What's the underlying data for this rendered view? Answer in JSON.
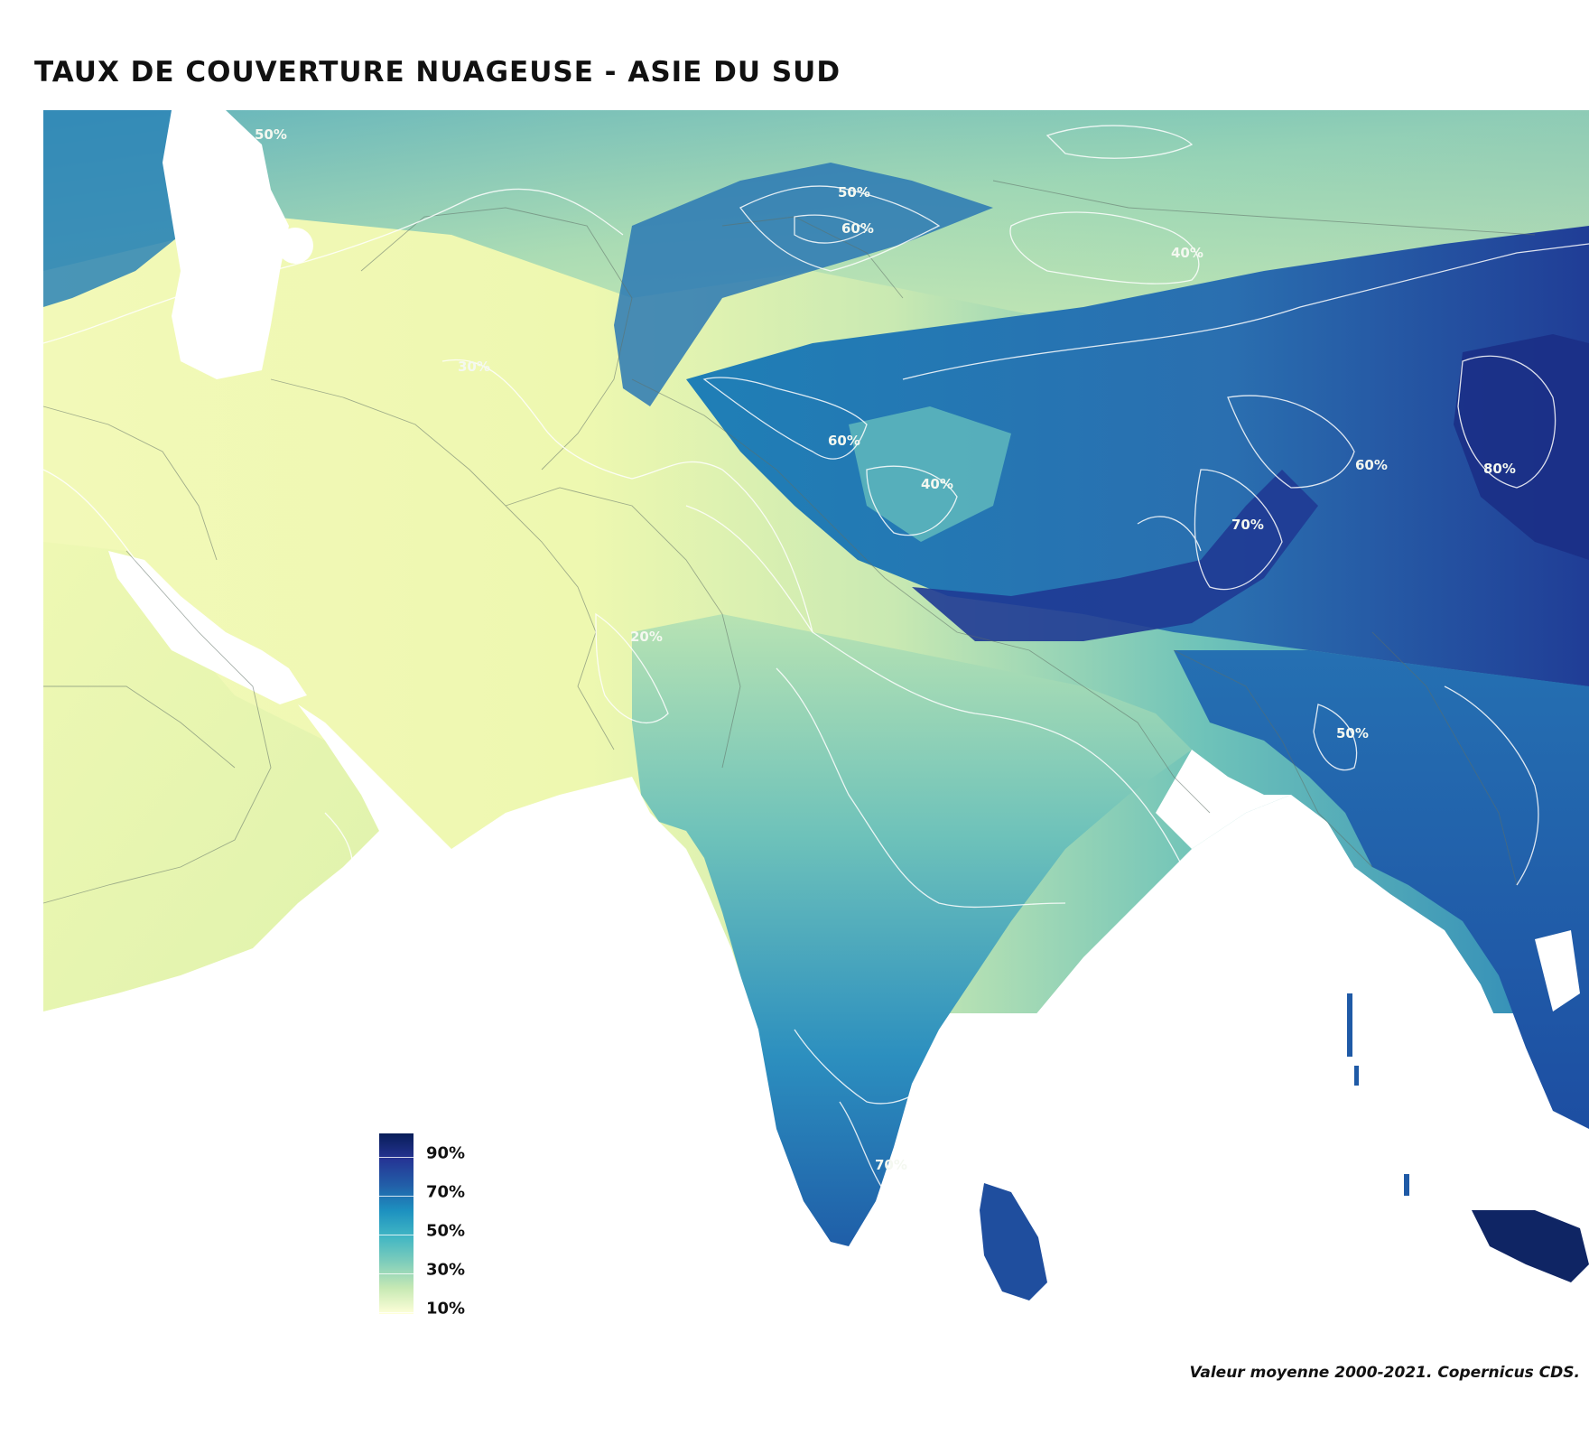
{
  "title": "Taux de couverture nuageuse - Asie du Sud",
  "credit": "Valeur moyenne 2000-2021. Copernicus CDS.",
  "legend": {
    "labels": [
      "90%",
      "70%",
      "50%",
      "30%",
      "10%"
    ],
    "min": 10,
    "max": 95,
    "colors": [
      "#ffffd9",
      "#c7e9b4",
      "#7fcdbb",
      "#41b6c4",
      "#1d91c0",
      "#225ea8",
      "#253494",
      "#081d58"
    ]
  },
  "contours": {
    "labels": [
      "50%",
      "50%",
      "60%",
      "40%",
      "30%",
      "60%",
      "40%",
      "60%",
      "80%",
      "70%",
      "20%",
      "50%",
      "70%"
    ]
  }
}
